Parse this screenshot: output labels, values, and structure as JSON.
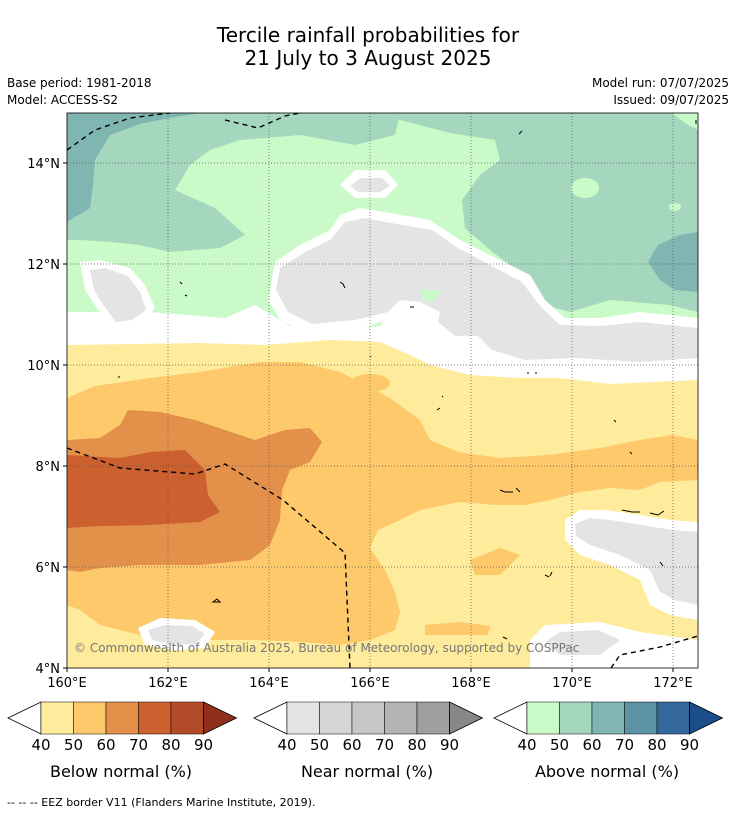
{
  "title": {
    "line1": "Tercile rainfall probabilities for",
    "line2": "21 July to 3 August 2025"
  },
  "meta": {
    "base_period": "Base period: 1981-2018",
    "model": "Model: ACCESS-S2",
    "model_run": "Model run: 07/07/2025",
    "issued": "Issued: 09/07/2025"
  },
  "map": {
    "lon_labels": [
      "160°E",
      "162°E",
      "164°E",
      "166°E",
      "168°E",
      "170°E",
      "172°E"
    ],
    "lat_labels": [
      "4°N",
      "6°N",
      "8°N",
      "10°N",
      "12°N",
      "14°N"
    ],
    "copyright": "© Commonwealth of Australia 2025, Bureau of Meteorology, supported by COSPPac"
  },
  "colorbars": [
    {
      "name": "Below normal (%)",
      "ticks": [
        "40",
        "50",
        "60",
        "70",
        "80",
        "90"
      ],
      "colors": [
        "#ffeb9c",
        "#fdc96a",
        "#e3914a",
        "#cc602f",
        "#b24c28",
        "#8f2f1c"
      ]
    },
    {
      "name": "Near normal (%)",
      "ticks": [
        "40",
        "50",
        "60",
        "70",
        "80",
        "90"
      ],
      "colors": [
        "#e4e4e4",
        "#d6d6d6",
        "#c6c6c6",
        "#b3b3b3",
        "#9f9f9f",
        "#878787"
      ]
    },
    {
      "name": "Above normal (%)",
      "ticks": [
        "40",
        "50",
        "60",
        "70",
        "80",
        "90"
      ],
      "colors": [
        "#c9fac8",
        "#a4d7bd",
        "#80b6b2",
        "#5b93a4",
        "#34689c",
        "#194e8a"
      ]
    }
  ],
  "footer_note": "-- -- -- EEZ border V11 (Flanders Marine Institute, 2019)."
}
